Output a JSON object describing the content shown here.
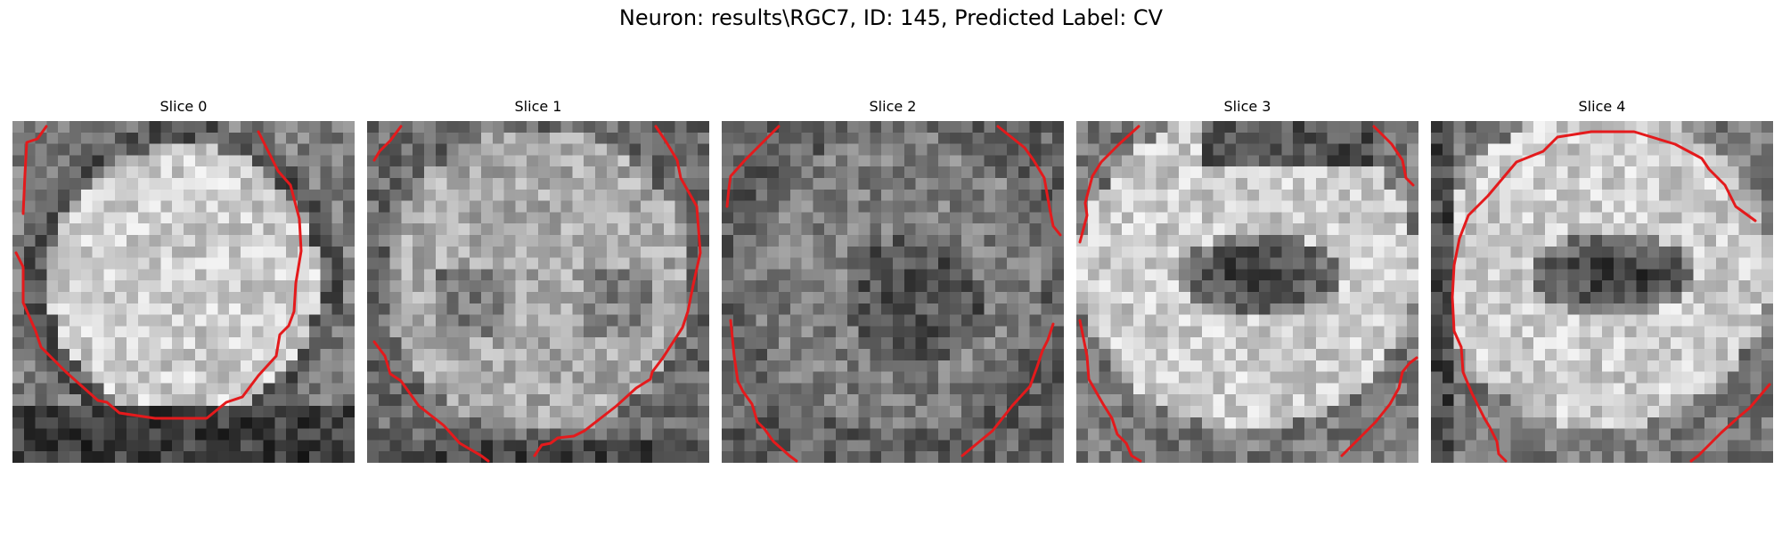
{
  "figure": {
    "title": "Neuron: results\\RGC7, ID: 145, Predicted Label: CV",
    "contour_color": "#e41a1c",
    "colormap": "grayscale",
    "slices": [
      {
        "label": "Slice 0",
        "pattern": "bright-disk"
      },
      {
        "label": "Slice 1",
        "pattern": "mid-gray-disk"
      },
      {
        "label": "Slice 2",
        "pattern": "noisy-dark-center"
      },
      {
        "label": "Slice 3",
        "pattern": "ring-with-dark-center"
      },
      {
        "label": "Slice 4",
        "pattern": "ring-with-dark-center"
      }
    ]
  }
}
